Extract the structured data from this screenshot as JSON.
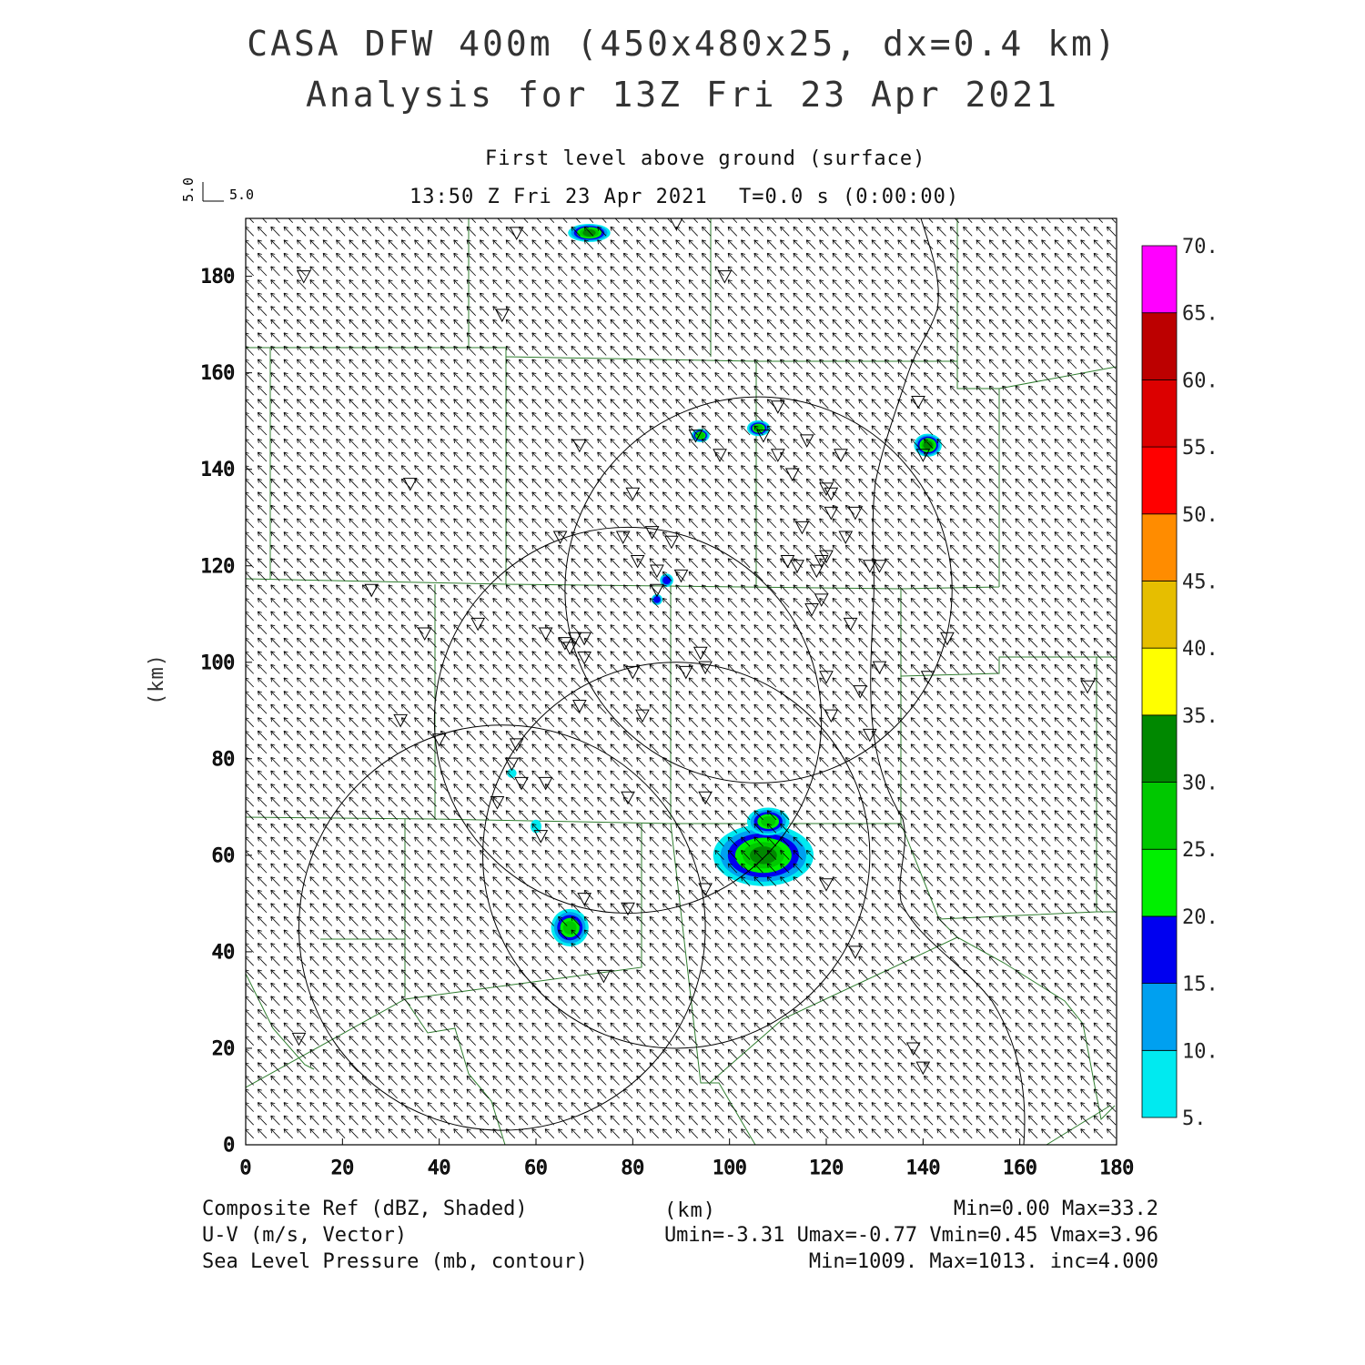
{
  "title_line1": "CASA DFW 400m (450x480x25, dx=0.4 km)",
  "title_line2": "Analysis for 13Z Fri 23 Apr 2021",
  "level_label": "First level above ground (surface)",
  "time_label": "13:50 Z Fri 23 Apr 2021",
  "elapsed_label": "T=0.0 s (0:00:00)",
  "vector_key": {
    "u_label": "5.0",
    "v_label": "5.0"
  },
  "axes": {
    "x_unit": "(km)",
    "y_unit": "(km)",
    "x_ticks": [
      "0",
      "20",
      "40",
      "60",
      "80",
      "100",
      "120",
      "140",
      "160",
      "180"
    ],
    "y_ticks": [
      "0",
      "20",
      "40",
      "60",
      "80",
      "100",
      "120",
      "140",
      "160",
      "180"
    ],
    "xlim": [
      0,
      180
    ],
    "ylim": [
      0,
      192
    ]
  },
  "colorbar": {
    "labels": [
      "5.",
      "10.",
      "15.",
      "20.",
      "25.",
      "30.",
      "35.",
      "40.",
      "45.",
      "50.",
      "55.",
      "60.",
      "65.",
      "70."
    ],
    "colors": [
      "#00eaf0",
      "#00a0f0",
      "#0000f0",
      "#00f000",
      "#00c800",
      "#008800",
      "#ffff00",
      "#e6be00",
      "#ff8c00",
      "#ff0000",
      "#dc0000",
      "#bc0000",
      "#ff00ff"
    ]
  },
  "footer": {
    "field1": "Composite Ref (dBZ, Shaded)",
    "field1_stats": "Min=0.00 Max=33.2",
    "field2": "U-V (m/s, Vector)",
    "field2_stats": "Umin=-3.31 Umax=-0.77 Vmin=0.45 Vmax=3.96",
    "field3": "Sea Level Pressure (mb, contour)",
    "field3_stats": "Min=1009. Max=1013. inc=4.000"
  },
  "radar_rings": [
    {
      "center_km": [
        53,
        45
      ],
      "radius_km": 42
    },
    {
      "center_km": [
        89,
        60
      ],
      "radius_km": 40
    },
    {
      "center_km": [
        79,
        88
      ],
      "radius_km": 40
    },
    {
      "center_km": [
        106,
        115
      ],
      "radius_km": 40
    }
  ],
  "wind": {
    "u_typical": -2.2,
    "v_typical": 2.3
  },
  "reflectivity_cells": [
    {
      "center_km": [
        71,
        189
      ],
      "size_km": [
        8,
        3
      ],
      "peak_dbz": 30
    },
    {
      "center_km": [
        94,
        147
      ],
      "size_km": [
        3,
        2
      ],
      "peak_dbz": 27
    },
    {
      "center_km": [
        106,
        148.5
      ],
      "size_km": [
        4,
        2.5
      ],
      "peak_dbz": 28
    },
    {
      "center_km": [
        141,
        145
      ],
      "size_km": [
        5,
        4
      ],
      "peak_dbz": 30
    },
    {
      "center_km": [
        87,
        117
      ],
      "size_km": [
        2,
        2
      ],
      "peak_dbz": 15
    },
    {
      "center_km": [
        85,
        113
      ],
      "size_km": [
        1.5,
        1.5
      ],
      "peak_dbz": 15
    },
    {
      "center_km": [
        67,
        45
      ],
      "size_km": [
        7,
        7
      ],
      "peak_dbz": 25
    },
    {
      "center_km": [
        107,
        60
      ],
      "size_km": [
        20,
        12
      ],
      "peak_dbz": 33
    },
    {
      "center_km": [
        108,
        67
      ],
      "size_km": [
        8,
        5
      ],
      "peak_dbz": 28
    },
    {
      "center_km": [
        55,
        77
      ],
      "size_km": [
        1.2,
        1.2
      ],
      "peak_dbz": 7
    },
    {
      "center_km": [
        60,
        66
      ],
      "size_km": [
        1.5,
        2
      ],
      "peak_dbz": 8
    }
  ],
  "station_markers_km": [
    [
      56,
      189
    ],
    [
      89,
      191
    ],
    [
      12,
      180
    ],
    [
      99,
      180
    ],
    [
      53,
      172
    ],
    [
      139,
      154
    ],
    [
      110,
      153
    ],
    [
      93,
      147
    ],
    [
      107,
      147
    ],
    [
      116,
      146
    ],
    [
      69,
      145
    ],
    [
      98,
      143
    ],
    [
      110,
      143
    ],
    [
      123,
      143
    ],
    [
      140,
      143
    ],
    [
      34,
      137
    ],
    [
      113,
      139
    ],
    [
      120,
      136
    ],
    [
      121,
      135
    ],
    [
      80,
      135
    ],
    [
      121,
      131
    ],
    [
      126,
      131
    ],
    [
      115,
      128
    ],
    [
      65,
      126
    ],
    [
      78,
      126
    ],
    [
      84,
      127
    ],
    [
      88,
      125
    ],
    [
      124,
      126
    ],
    [
      81,
      121
    ],
    [
      112,
      121
    ],
    [
      114,
      120
    ],
    [
      119,
      121
    ],
    [
      120,
      122
    ],
    [
      118,
      119
    ],
    [
      129,
      120
    ],
    [
      131,
      120
    ],
    [
      85,
      119
    ],
    [
      90,
      118
    ],
    [
      85,
      115
    ],
    [
      26,
      115
    ],
    [
      117,
      111
    ],
    [
      119,
      113
    ],
    [
      48,
      108
    ],
    [
      125,
      108
    ],
    [
      37,
      106
    ],
    [
      62,
      106
    ],
    [
      66,
      104
    ],
    [
      68,
      105
    ],
    [
      70,
      105
    ],
    [
      67,
      103
    ],
    [
      70,
      101
    ],
    [
      145,
      105
    ],
    [
      94,
      102
    ],
    [
      95,
      99
    ],
    [
      91,
      98
    ],
    [
      131,
      99
    ],
    [
      80,
      98
    ],
    [
      120,
      97
    ],
    [
      141,
      97
    ],
    [
      174,
      95
    ],
    [
      127,
      94
    ],
    [
      69,
      91
    ],
    [
      82,
      89
    ],
    [
      121,
      89
    ],
    [
      32,
      88
    ],
    [
      40,
      84
    ],
    [
      129,
      85
    ],
    [
      56,
      83
    ],
    [
      55,
      79
    ],
    [
      57,
      75
    ],
    [
      62,
      75
    ],
    [
      52,
      71
    ],
    [
      79,
      72
    ],
    [
      95,
      72
    ],
    [
      61,
      64
    ],
    [
      120,
      54
    ],
    [
      95,
      53
    ],
    [
      70,
      51
    ],
    [
      79,
      49
    ],
    [
      126,
      40
    ],
    [
      74,
      35
    ],
    [
      11,
      22
    ],
    [
      138,
      20
    ],
    [
      140,
      16
    ]
  ]
}
